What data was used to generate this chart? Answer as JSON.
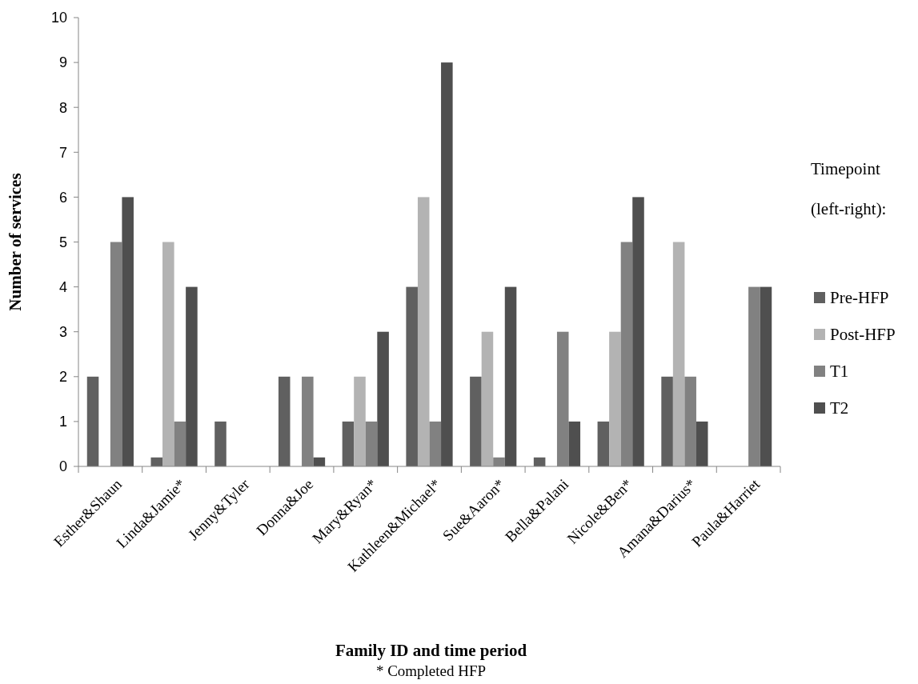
{
  "chart_data": {
    "type": "bar",
    "xlabel": "Family ID and time period",
    "ylabel": "Number of services",
    "legend_title": "Timepoint (left-right):",
    "annotations": [
      "* Completed HFP"
    ],
    "categories": [
      "Esther&Shaun",
      "Linda&Jamie*",
      "Jenny&Tyler",
      "Donna&Joe",
      "Mary&Ryan*",
      "Kathleen&Michael*",
      "Sue&Aaron*",
      "Bella&Palani",
      "Nicole&Ben*",
      "Amana&Darius*",
      "Paula&Harriet"
    ],
    "series": [
      {
        "name": "Pre-HFP",
        "color": "#606060",
        "values": [
          2,
          0.2,
          1,
          2,
          1,
          4,
          2,
          0.2,
          1,
          2,
          null
        ]
      },
      {
        "name": "Post-HFP",
        "color": "#b3b3b3",
        "values": [
          null,
          5,
          null,
          null,
          2,
          6,
          3,
          null,
          3,
          5,
          null
        ]
      },
      {
        "name": "T1",
        "color": "#818181",
        "values": [
          5,
          1,
          null,
          2,
          1,
          1,
          0.2,
          3,
          5,
          2,
          4
        ]
      },
      {
        "name": "T2",
        "color": "#4f4f4f",
        "values": [
          6,
          4,
          null,
          0.2,
          3,
          9,
          4,
          1,
          6,
          1,
          4
        ]
      }
    ],
    "ylim": [
      0,
      10
    ],
    "yticks": [
      0,
      1,
      2,
      3,
      4,
      5,
      6,
      7,
      8,
      9,
      10
    ],
    "grid": false,
    "legend": "right"
  }
}
